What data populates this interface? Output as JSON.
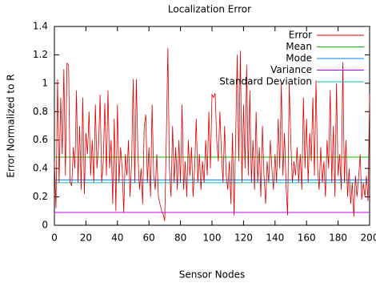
{
  "chart_data": {
    "type": "line",
    "title": "Localization Error",
    "x_label": "Sensor Nodes",
    "y_label": "Error Normalized to R",
    "x": [
      0,
      1,
      2,
      3,
      4,
      5,
      6,
      7,
      8,
      9,
      10,
      11,
      12,
      13,
      14,
      15,
      16,
      17,
      18,
      19,
      20,
      21,
      22,
      23,
      24,
      25,
      26,
      27,
      28,
      29,
      30,
      31,
      32,
      33,
      34,
      35,
      36,
      37,
      38,
      39,
      40,
      41,
      42,
      43,
      44,
      45,
      46,
      47,
      48,
      49,
      50,
      51,
      52,
      53,
      54,
      55,
      56,
      57,
      58,
      59,
      60,
      61,
      62,
      63,
      64,
      65,
      66,
      67,
      68,
      69,
      70,
      71,
      72,
      73,
      74,
      75,
      76,
      77,
      78,
      79,
      80,
      81,
      82,
      83,
      84,
      85,
      86,
      87,
      88,
      89,
      90,
      91,
      92,
      93,
      94,
      95,
      96,
      97,
      98,
      99,
      100,
      101,
      102,
      103,
      104,
      105,
      106,
      107,
      108,
      109,
      110,
      111,
      112,
      113,
      114,
      115,
      116,
      117,
      118,
      119,
      120,
      121,
      122,
      123,
      124,
      125,
      126,
      127,
      128,
      129,
      130,
      131,
      132,
      133,
      134,
      135,
      136,
      137,
      138,
      139,
      140,
      141,
      142,
      143,
      144,
      145,
      146,
      147,
      148,
      149,
      150,
      151,
      152,
      153,
      154,
      155,
      156,
      157,
      158,
      159,
      160,
      161,
      162,
      163,
      164,
      165,
      166,
      167,
      168,
      169,
      170,
      171,
      172,
      173,
      174,
      175,
      176,
      177,
      178,
      179,
      180,
      181,
      182,
      183,
      184,
      185,
      186,
      187,
      188,
      189,
      190,
      191,
      192,
      193,
      194,
      195,
      196,
      197,
      198,
      199,
      200
    ],
    "series": [
      {
        "name": "Error",
        "color": "#e00000",
        "values": [
          0.45,
          0.12,
          1.03,
          0.3,
          0.9,
          0.5,
          1.1,
          0.35,
          1.14,
          1.13,
          0.3,
          0.28,
          0.55,
          0.4,
          0.95,
          0.3,
          0.7,
          0.25,
          0.9,
          0.22,
          0.65,
          0.5,
          0.8,
          0.35,
          0.6,
          0.3,
          0.85,
          0.4,
          0.55,
          0.92,
          0.3,
          0.45,
          0.86,
          0.35,
          0.95,
          0.4,
          0.6,
          0.15,
          0.75,
          0.1,
          0.85,
          0.3,
          0.55,
          0.4,
          0.09,
          0.5,
          0.35,
          0.6,
          0.2,
          0.45,
          1.03,
          0.3,
          1.03,
          0.5,
          0.25,
          0.4,
          0.15,
          0.7,
          0.78,
          0.3,
          0.55,
          0.2,
          0.85,
          0.35,
          0.25,
          0.5,
          0.2,
          0.15,
          0.1,
          0.08,
          0.03,
          0.6,
          1.25,
          0.4,
          0.2,
          0.7,
          0.3,
          0.55,
          0.25,
          0.6,
          0.3,
          0.85,
          0.25,
          0.45,
          0.2,
          0.6,
          0.35,
          0.55,
          0.2,
          0.4,
          0.75,
          0.3,
          0.5,
          0.25,
          0.45,
          0.3,
          0.6,
          0.35,
          0.8,
          0.4,
          0.92,
          0.9,
          0.93,
          0.6,
          0.45,
          0.8,
          0.5,
          0.3,
          0.7,
          0.35,
          0.25,
          0.45,
          0.15,
          0.65,
          0.07,
          0.6,
          1.2,
          0.45,
          1.23,
          0.3,
          0.85,
          0.4,
          1.13,
          0.35,
          0.95,
          0.3,
          0.6,
          0.25,
          0.8,
          0.3,
          0.55,
          0.2,
          0.7,
          0.35,
          0.15,
          0.45,
          0.3,
          0.6,
          0.4,
          0.25,
          0.5,
          0.3,
          0.75,
          0.4,
          1.0,
          0.35,
          0.65,
          0.28,
          0.07,
          1.0,
          0.6,
          0.3,
          0.45,
          0.35,
          0.55,
          0.3,
          0.5,
          0.25,
          0.9,
          0.4,
          0.75,
          0.3,
          0.65,
          0.45,
          0.9,
          0.35,
          1.02,
          0.4,
          0.25,
          0.55,
          0.3,
          0.45,
          0.2,
          0.6,
          0.4,
          0.95,
          0.3,
          0.7,
          0.2,
          1.0,
          0.35,
          0.5,
          0.25,
          1.15,
          0.3,
          0.6,
          0.2,
          0.4,
          0.15,
          0.3,
          0.06,
          0.35,
          0.2,
          0.33,
          0.5,
          0.18,
          0.3,
          0.2,
          0.35,
          0.17,
          0.92
        ]
      }
    ],
    "hlines": [
      {
        "name": "Mean",
        "color": "#00c000",
        "value": 0.48
      },
      {
        "name": "Mode",
        "color": "#0080ff",
        "value": 0.32
      },
      {
        "name": "Variance",
        "color": "#c000ff",
        "value": 0.09
      },
      {
        "name": "Standard Deviation",
        "color": "#00c0c0",
        "value": 0.3
      }
    ],
    "xlim": [
      0,
      200
    ],
    "ylim": [
      0,
      1.4
    ],
    "xticks": [
      0,
      20,
      40,
      60,
      80,
      100,
      120,
      140,
      160,
      180,
      200
    ],
    "yticks": [
      0,
      0.2,
      0.4,
      0.6,
      0.8,
      1,
      1.2,
      1.4
    ],
    "legend": "top-right",
    "grid": false
  }
}
